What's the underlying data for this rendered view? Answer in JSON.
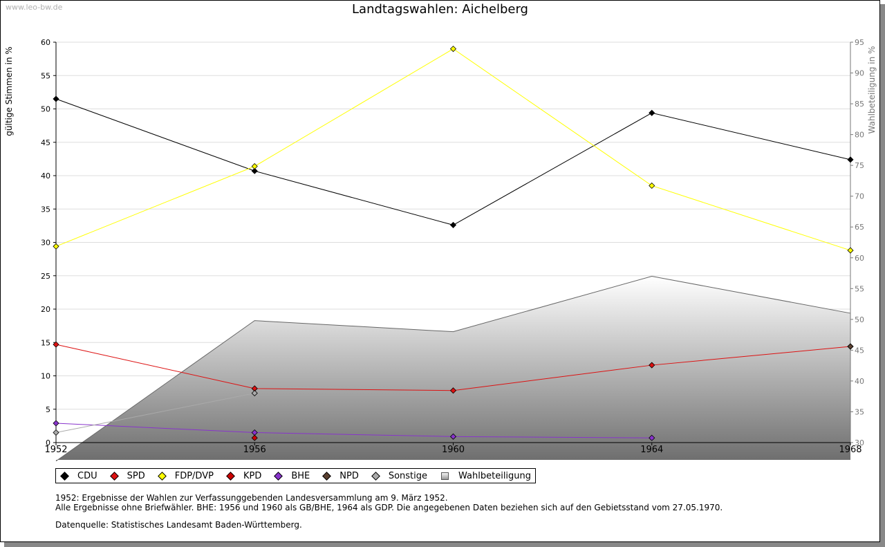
{
  "watermark": "www.leo-bw.de",
  "chart_data": {
    "type": "line",
    "title": "Landtagswahlen: Aichelberg",
    "ylabel": "gültige Stimmen in %",
    "y2label": "Wahlbeteiligung in %",
    "x": [
      1952,
      1956,
      1960,
      1964,
      1968
    ],
    "x_tick_labels": [
      "1952",
      "1956",
      "1960",
      "1964",
      "1968"
    ],
    "ylim": [
      0,
      60
    ],
    "y_ticks": [
      0,
      5,
      10,
      15,
      20,
      25,
      30,
      35,
      40,
      45,
      50,
      55,
      60
    ],
    "y2lim": [
      30,
      95
    ],
    "y2_ticks": [
      30,
      35,
      40,
      45,
      50,
      55,
      60,
      65,
      70,
      75,
      80,
      85,
      90,
      95
    ],
    "grid": true,
    "series": [
      {
        "name": "CDU",
        "color": "#000000",
        "values": [
          51.5,
          40.7,
          32.6,
          49.4,
          42.4
        ]
      },
      {
        "name": "SPD",
        "color": "#dd1111",
        "values": [
          14.7,
          8.1,
          7.8,
          11.6,
          14.4
        ]
      },
      {
        "name": "FDP/DVP",
        "color": "#ffff00",
        "values": [
          29.4,
          41.4,
          59.0,
          38.5,
          28.8
        ]
      },
      {
        "name": "KPD",
        "color": "#cc0000",
        "values": [
          null,
          0.7,
          null,
          null,
          null
        ]
      },
      {
        "name": "BHE",
        "color": "#8833cc",
        "values": [
          2.9,
          1.5,
          0.9,
          0.7,
          null
        ]
      },
      {
        "name": "NPD",
        "color": "#5a4030",
        "values": [
          null,
          null,
          null,
          null,
          14.4
        ]
      },
      {
        "name": "Sonstige",
        "color": "#aaaaaa",
        "values": [
          1.5,
          7.4,
          null,
          null,
          null
        ]
      }
    ],
    "turnout": {
      "name": "Wahlbeteiligung",
      "axis": "right",
      "values": [
        27.0,
        49.8,
        48.0,
        57.0,
        51.0
      ]
    }
  },
  "legend": [
    {
      "label": "CDU",
      "color": "#000000",
      "shape": "diamond"
    },
    {
      "label": "SPD",
      "color": "#dd1111",
      "shape": "diamond"
    },
    {
      "label": "FDP/DVP",
      "color": "#ffff00",
      "shape": "diamond"
    },
    {
      "label": "KPD",
      "color": "#cc0000",
      "shape": "diamond"
    },
    {
      "label": "BHE",
      "color": "#8833cc",
      "shape": "diamond"
    },
    {
      "label": "NPD",
      "color": "#5a4030",
      "shape": "diamond"
    },
    {
      "label": "Sonstige",
      "color": "#aaaaaa",
      "shape": "diamond"
    },
    {
      "label": "Wahlbeteiligung",
      "color": "#999999",
      "shape": "square"
    }
  ],
  "notes": [
    "1952: Ergebnisse der Wahlen zur Verfassunggebenden Landesversammlung am 9. März 1952.",
    "Alle Ergebnisse ohne Briefwähler. BHE: 1956 und 1960 als GB/BHE, 1964 als GDP. Die angegebenen Daten beziehen sich auf den Gebietsstand vom 27.05.1970."
  ],
  "source": "Datenquelle: Statistisches Landesamt Baden-Württemberg."
}
